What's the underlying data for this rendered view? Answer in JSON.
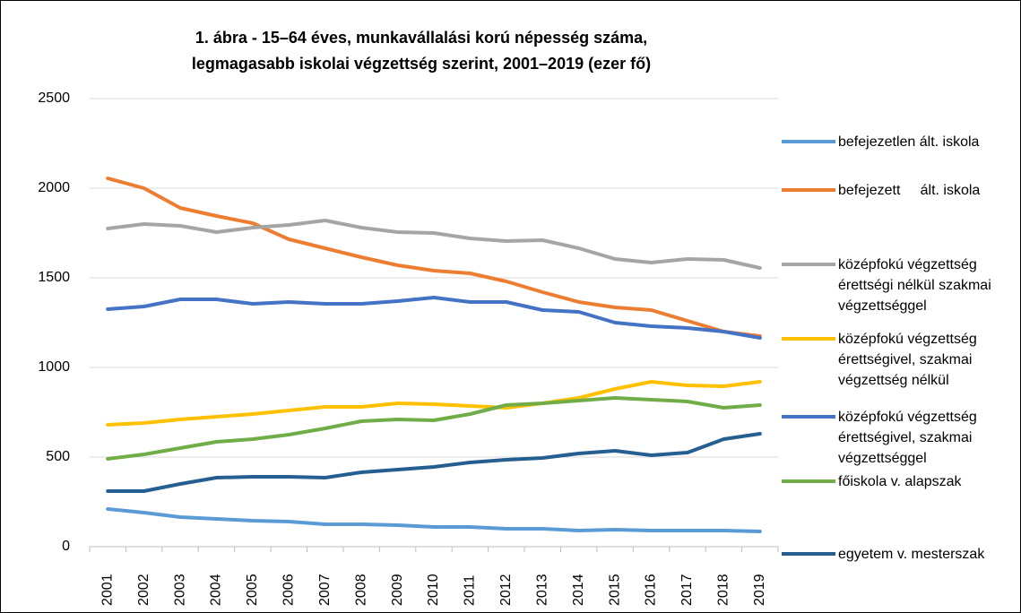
{
  "chart_data": {
    "type": "line",
    "title": "1. ábra - 15–64 éves, munkavállalási korú népesség száma,\nlegmagasabb iskolai végzettség szerint, 2001–2019 (ezer fő)",
    "categories": [
      "2001",
      "2002",
      "2003",
      "2004",
      "2005",
      "2006",
      "2007",
      "2008",
      "2009",
      "2010",
      "2011",
      "2012",
      "2013",
      "2014",
      "2015",
      "2016",
      "2017",
      "2018",
      "2019"
    ],
    "ylim": [
      0,
      2500
    ],
    "yticks": [
      0,
      500,
      1000,
      1500,
      2000,
      2500
    ],
    "grid": true,
    "legend": "right",
    "series": [
      {
        "name": "befejezetlen ált. iskola",
        "color": "#5b9bd5",
        "values": [
          210,
          190,
          165,
          155,
          145,
          140,
          125,
          125,
          120,
          110,
          110,
          100,
          100,
          90,
          95,
          90,
          90,
          90,
          85
        ]
      },
      {
        "name": "befejezett     ált. iskola",
        "color": "#ed7d31",
        "values": [
          2055,
          2000,
          1890,
          1845,
          1805,
          1715,
          1665,
          1615,
          1570,
          1540,
          1525,
          1480,
          1420,
          1365,
          1335,
          1320,
          1260,
          1200,
          1175
        ]
      },
      {
        "name": "középfokú végzettség érettségi nélkül szakmai végzettséggel",
        "color": "#a5a5a5",
        "values": [
          1775,
          1800,
          1790,
          1755,
          1780,
          1795,
          1820,
          1780,
          1755,
          1750,
          1720,
          1705,
          1710,
          1665,
          1605,
          1585,
          1605,
          1600,
          1555
        ]
      },
      {
        "name": "középfokú végzettség érettségivel, szakmai végzettség nélkül",
        "color": "#ffc000",
        "values": [
          680,
          690,
          710,
          725,
          740,
          760,
          780,
          780,
          800,
          795,
          785,
          775,
          800,
          830,
          880,
          920,
          900,
          895,
          920
        ]
      },
      {
        "name": "középfokú végzettség érettségivel, szakmai végzettséggel",
        "color": "#4472c4",
        "values": [
          1325,
          1340,
          1380,
          1380,
          1355,
          1365,
          1355,
          1355,
          1370,
          1390,
          1365,
          1365,
          1320,
          1310,
          1250,
          1230,
          1220,
          1200,
          1165
        ]
      },
      {
        "name": "főiskola v. alapszak",
        "color": "#70ad47",
        "values": [
          490,
          515,
          550,
          585,
          600,
          625,
          660,
          700,
          710,
          705,
          740,
          790,
          800,
          815,
          830,
          820,
          810,
          775,
          790
        ]
      },
      {
        "name": "egyetem v. mesterszak",
        "color": "#255e91",
        "values": [
          310,
          310,
          350,
          385,
          390,
          390,
          385,
          415,
          430,
          445,
          470,
          485,
          495,
          520,
          535,
          510,
          525,
          600,
          630
        ]
      }
    ]
  }
}
